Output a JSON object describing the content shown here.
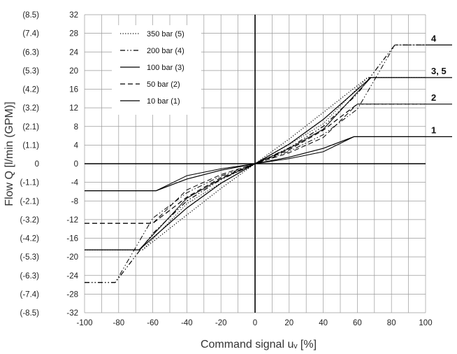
{
  "chart_data": {
    "type": "line",
    "xlabel": "Command signal uᵥ [%]",
    "ylabel": "Flow Q [l/min (GPM)]",
    "xlim": [
      -100,
      100
    ],
    "ylim": [
      -32,
      32
    ],
    "x_ticks": [
      "-100",
      "-80",
      "-60",
      "-40",
      "-20",
      "0",
      "20",
      "40",
      "60",
      "80",
      "100"
    ],
    "y_ticks": [
      "32",
      "28",
      "24",
      "20",
      "16",
      "12",
      "8",
      "4",
      "0",
      "-4",
      "-8",
      "-12",
      "-16",
      "-20",
      "-24",
      "-28",
      "-32"
    ],
    "y_ticks_gpm": [
      "(8.5)",
      "(7.4)",
      "(6.3)",
      "(5.3)",
      "(4.2)",
      "(3.2)",
      "(2.1)",
      "(1.1)",
      "0",
      "(-1.1)",
      "(-2.1)",
      "(-3.2)",
      "(-4.2)",
      "(-5.3)",
      "(-6.3)",
      "(-7.4)",
      "(-8.5)"
    ],
    "grid": true,
    "legend_position": "top-left",
    "series": [
      {
        "name": "350 bar  (5)",
        "curve": "5",
        "style": "dotted",
        "max_flow": 18.5,
        "sat_x": 66,
        "x": [
          -100,
          -66,
          -40,
          -20,
          0,
          20,
          40,
          66,
          100
        ],
        "y": [
          -18.5,
          -18.5,
          -11,
          -5.3,
          0,
          5.3,
          11,
          18.5,
          18.5
        ]
      },
      {
        "name": "200 bar  (4)",
        "curve": "4",
        "style": "dashdotdot",
        "max_flow": 25.5,
        "sat_x": -82,
        "x": [
          -100,
          -82,
          -60,
          -40,
          -20,
          0,
          20,
          40,
          60,
          82,
          100
        ],
        "y": [
          -25.5,
          -25.5,
          -15,
          -8,
          -3.4,
          0,
          3.4,
          8,
          15,
          25.5,
          25.5
        ]
      },
      {
        "name": "100 bar  (3)",
        "curve": "3",
        "style": "solid",
        "max_flow": 18.5,
        "sat_x": 68,
        "x": [
          -100,
          -68,
          -40,
          -20,
          0,
          20,
          40,
          68,
          100
        ],
        "y": [
          -18.5,
          -18.5,
          -9.5,
          -4.2,
          0,
          4.2,
          9.5,
          18.5,
          18.5
        ]
      },
      {
        "name": "50 bar  (2)",
        "curve": "2",
        "style": "dashed",
        "max_flow": 12.8,
        "sat_x": 60,
        "x": [
          -100,
          -60,
          -40,
          -20,
          0,
          20,
          40,
          60,
          100
        ],
        "y": [
          -12.8,
          -12.8,
          -7.2,
          -3,
          0,
          3,
          7.2,
          12.8,
          12.8
        ]
      },
      {
        "name": "10 bar  (1)",
        "curve": "1",
        "style": "solid",
        "max_flow": 5.8,
        "sat_x": 58,
        "x": [
          -100,
          -58,
          -40,
          -20,
          0,
          20,
          40,
          58,
          100
        ],
        "y": [
          -5.8,
          -5.8,
          -3.3,
          -1.4,
          0,
          1.4,
          3.3,
          5.8,
          5.8
        ]
      }
    ],
    "end_labels": [
      "4",
      "3, 5",
      "2",
      "1"
    ]
  }
}
